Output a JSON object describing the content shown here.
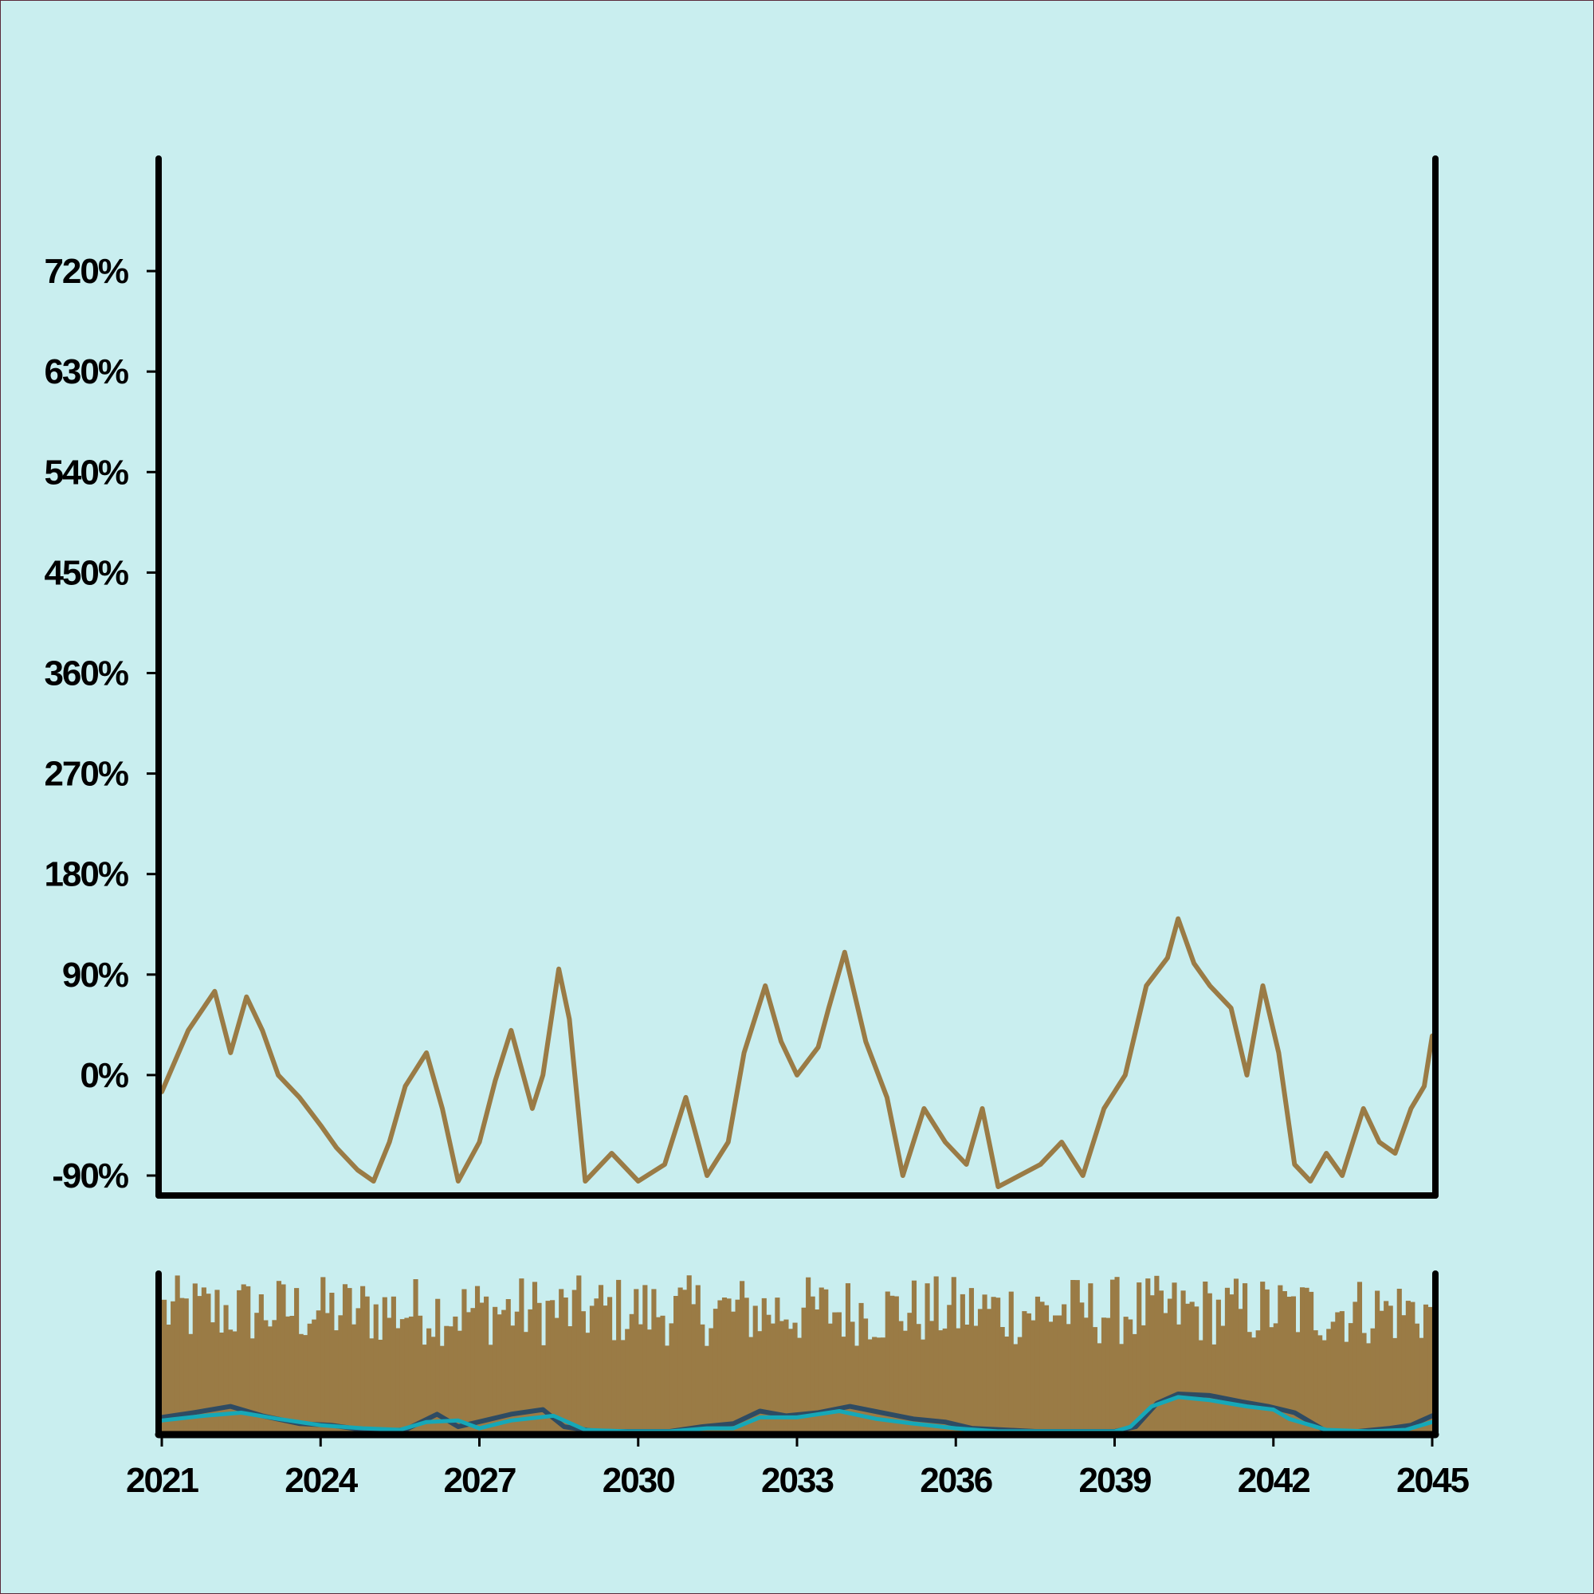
{
  "colors": {
    "background": "#c9eeef",
    "main_line": "#9a7b45",
    "bars": "#9a7b45",
    "dark_line": "#2e4b63",
    "teal_line": "#16a8b8",
    "axis": "#000000"
  },
  "chart_data": [
    {
      "type": "line",
      "title": "",
      "xlabel": "",
      "ylabel": "",
      "xlim": [
        2021,
        2045
      ],
      "ylim": [
        -105,
        820
      ],
      "y_ticks": [
        -90,
        0,
        90,
        180,
        270,
        360,
        450,
        540,
        630,
        720
      ],
      "y_tick_labels": [
        "-90%",
        "0%",
        "90%",
        "180%",
        "270%",
        "360%",
        "450%",
        "540%",
        "630%",
        "720%"
      ],
      "series": [
        {
          "name": "",
          "color": "#9a7b45",
          "x": [
            2021.0,
            2021.5,
            2022.0,
            2022.3,
            2022.6,
            2022.9,
            2023.2,
            2023.6,
            2024.0,
            2024.3,
            2024.7,
            2025.0,
            2025.3,
            2025.6,
            2026.0,
            2026.3,
            2026.6,
            2027.0,
            2027.3,
            2027.6,
            2028.0,
            2028.2,
            2028.5,
            2028.7,
            2029.0,
            2029.5,
            2030.0,
            2030.5,
            2030.9,
            2031.3,
            2031.7,
            2032.0,
            2032.4,
            2032.7,
            2033.0,
            2033.4,
            2033.6,
            2033.9,
            2034.3,
            2034.7,
            2035.0,
            2035.4,
            2035.8,
            2036.2,
            2036.5,
            2036.8,
            2037.2,
            2037.6,
            2038.0,
            2038.4,
            2038.8,
            2039.2,
            2039.6,
            2040.0,
            2040.2,
            2040.5,
            2040.8,
            2041.2,
            2041.5,
            2041.8,
            2042.1,
            2042.4,
            2042.7,
            2043.0,
            2043.3,
            2043.7,
            2044.0,
            2044.3,
            2044.6,
            2044.85,
            2045.0
          ],
          "y": [
            -15,
            40,
            75,
            20,
            70,
            40,
            0,
            -20,
            -45,
            -65,
            -85,
            -95,
            -60,
            -10,
            20,
            -30,
            -95,
            -60,
            -5,
            40,
            -30,
            0,
            95,
            50,
            -95,
            -70,
            -95,
            -80,
            -20,
            -90,
            -60,
            20,
            80,
            30,
            0,
            25,
            60,
            110,
            30,
            -20,
            -90,
            -30,
            -60,
            -80,
            -30,
            -100,
            -90,
            -80,
            -60,
            -90,
            -30,
            0,
            80,
            105,
            140,
            100,
            80,
            60,
            0,
            80,
            20,
            -80,
            -95,
            -70,
            -90,
            -30,
            -60,
            -70,
            -30,
            -10,
            35
          ]
        }
      ]
    },
    {
      "type": "bar",
      "title": "",
      "xlabel": "",
      "ylabel": "",
      "xlim": [
        2021,
        2045
      ],
      "x_ticks": [
        2021,
        2024,
        2027,
        2030,
        2033,
        2036,
        2039,
        2042,
        2045
      ],
      "x_tick_labels": [
        "2021",
        "2024",
        "2027",
        "2030",
        "2033",
        "2036",
        "2039",
        "2042",
        "2045"
      ],
      "bars": {
        "color": "#9a7b45",
        "count": 288,
        "value_range": [
          0.3,
          1.0
        ]
      },
      "series": [
        {
          "name": "",
          "color": "#2e4b63",
          "x": [
            2021.0,
            2021.6,
            2022.3,
            2022.9,
            2023.6,
            2024.2,
            2025.0,
            2025.6,
            2026.2,
            2026.6,
            2027.1,
            2027.6,
            2028.2,
            2028.6,
            2029.2,
            2029.9,
            2030.6,
            2031.2,
            2031.8,
            2032.3,
            2032.8,
            2033.4,
            2034.0,
            2034.6,
            2035.2,
            2035.8,
            2036.3,
            2036.9,
            2037.5,
            2038.3,
            2039.0,
            2039.4,
            2039.8,
            2040.2,
            2040.8,
            2041.4,
            2041.9,
            2042.4,
            2043.0,
            2043.6,
            2044.2,
            2044.6,
            2045.0
          ],
          "y": [
            0.09,
            0.12,
            0.16,
            0.1,
            0.05,
            0.04,
            0.0,
            0.01,
            0.11,
            0.03,
            0.07,
            0.11,
            0.14,
            0.03,
            0.0,
            0.0,
            0.0,
            0.03,
            0.05,
            0.13,
            0.1,
            0.12,
            0.16,
            0.12,
            0.08,
            0.06,
            0.02,
            0.01,
            0.0,
            0.0,
            0.0,
            0.03,
            0.18,
            0.24,
            0.23,
            0.19,
            0.16,
            0.12,
            0.0,
            0.0,
            0.02,
            0.04,
            0.1
          ]
        },
        {
          "name": "",
          "color": "#16a8b8",
          "x": [
            2021.0,
            2021.8,
            2022.5,
            2023.2,
            2024.0,
            2024.8,
            2025.5,
            2026.0,
            2026.6,
            2027.0,
            2027.6,
            2028.4,
            2029.0,
            2029.8,
            2030.6,
            2031.3,
            2031.8,
            2032.3,
            2033.0,
            2033.8,
            2034.5,
            2035.2,
            2036.0,
            2036.8,
            2037.6,
            2038.4,
            2039.0,
            2039.3,
            2039.7,
            2040.2,
            2040.8,
            2041.5,
            2042.0,
            2042.3,
            2043.0,
            2043.8,
            2044.5,
            2045.0
          ],
          "y": [
            0.07,
            0.1,
            0.12,
            0.08,
            0.04,
            0.02,
            0.01,
            0.06,
            0.07,
            0.02,
            0.07,
            0.1,
            0.01,
            0.0,
            0.0,
            0.02,
            0.02,
            0.09,
            0.09,
            0.13,
            0.08,
            0.05,
            0.02,
            0.0,
            0.0,
            0.0,
            0.0,
            0.03,
            0.16,
            0.22,
            0.2,
            0.16,
            0.14,
            0.08,
            0.01,
            0.0,
            0.01,
            0.06
          ]
        }
      ]
    }
  ]
}
